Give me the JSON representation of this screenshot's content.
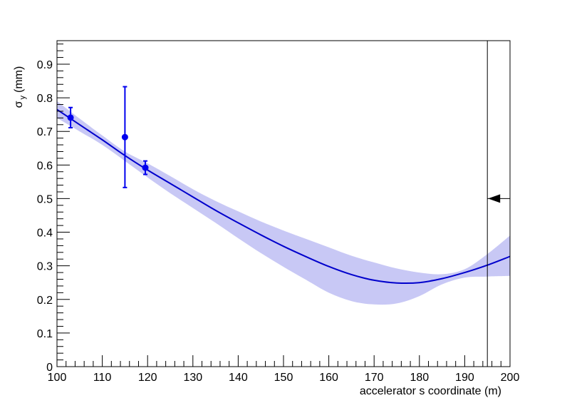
{
  "chart_data": {
    "type": "line",
    "xlabel": "accelerator s coordinate (m)",
    "ylabel_main": "σ",
    "ylabel_sub": "y",
    "ylabel_unit": "(mm)",
    "xlim": [
      100,
      200
    ],
    "ylim": [
      0,
      0.97
    ],
    "xticks": [
      "100",
      "110",
      "120",
      "130",
      "140",
      "150",
      "160",
      "170",
      "180",
      "190",
      "200"
    ],
    "yticks": [
      "0",
      "0.1",
      "0.2",
      "0.3",
      "0.4",
      "0.5",
      "0.6",
      "0.7",
      "0.8",
      "0.9"
    ],
    "grid": false,
    "colors": {
      "line": "#0000cc",
      "band": "#c8c8f5",
      "points": "#0000ee",
      "axes": "#000000"
    },
    "fit_curve": {
      "x": [
        100,
        105,
        110,
        115,
        120,
        125,
        130,
        135,
        140,
        145,
        150,
        155,
        160,
        165,
        170,
        175,
        180,
        185,
        190,
        195,
        200
      ],
      "y": [
        0.765,
        0.72,
        0.675,
        0.628,
        0.585,
        0.545,
        0.505,
        0.465,
        0.428,
        0.392,
        0.358,
        0.327,
        0.298,
        0.274,
        0.257,
        0.249,
        0.25,
        0.262,
        0.28,
        0.302,
        0.328
      ]
    },
    "band": {
      "x": [
        100,
        105,
        110,
        115,
        120,
        125,
        130,
        135,
        140,
        145,
        150,
        155,
        160,
        165,
        170,
        175,
        180,
        185,
        190,
        195,
        200
      ],
      "upper": [
        0.79,
        0.738,
        0.688,
        0.64,
        0.605,
        0.567,
        0.528,
        0.493,
        0.462,
        0.432,
        0.405,
        0.38,
        0.355,
        0.33,
        0.31,
        0.292,
        0.28,
        0.275,
        0.29,
        0.335,
        0.39
      ],
      "lower": [
        0.74,
        0.7,
        0.66,
        0.612,
        0.563,
        0.516,
        0.472,
        0.428,
        0.382,
        0.338,
        0.297,
        0.258,
        0.22,
        0.195,
        0.185,
        0.188,
        0.21,
        0.245,
        0.265,
        0.268,
        0.27
      ]
    },
    "points": [
      {
        "x": 103,
        "y": 0.741,
        "err": 0.03
      },
      {
        "x": 115,
        "y": 0.683,
        "err": 0.15
      },
      {
        "x": 119.5,
        "y": 0.592,
        "err": 0.02
      }
    ],
    "marker": {
      "x": 195,
      "y": 0.5
    }
  }
}
